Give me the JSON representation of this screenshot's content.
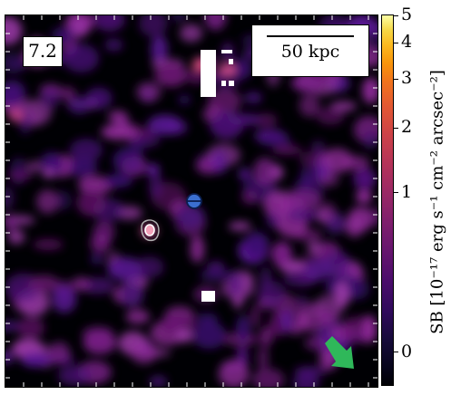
{
  "panel": {
    "label": "7.2",
    "scale_bar_text": "50 kpc"
  },
  "colorbar": {
    "colormap": "magma",
    "tick_labels": [
      "5",
      "4",
      "3",
      "2",
      "1",
      "0"
    ],
    "title": "SB [10⁻¹⁷ erg s⁻¹ cm⁻² arcsec⁻²]",
    "min_color": "#000004",
    "max_color": "#fcffa4"
  },
  "markers": {
    "source_marker_color": "#3b6fd1",
    "contour_color": "#b0b0b0",
    "arrow_color": "#2fb85a"
  }
}
